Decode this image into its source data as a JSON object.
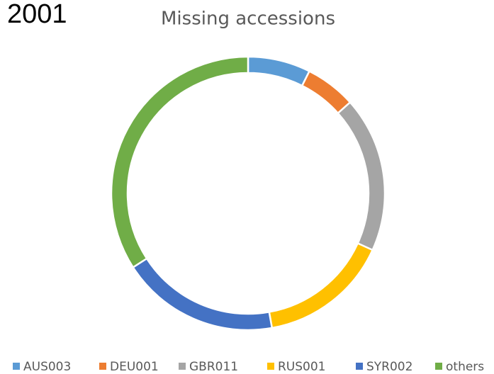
{
  "chart_data": {
    "type": "donut",
    "annotation": "2001",
    "title": "Missing accessions",
    "categories": [
      "AUS003",
      "DEU001",
      "GBR011",
      "RUS001",
      "SYR002",
      "others"
    ],
    "values": [
      7.4,
      6,
      18.4,
      15.4,
      18.7,
      34.1
    ],
    "colors": [
      "#5b9bd5",
      "#ed7d31",
      "#a5a5a5",
      "#ffc000",
      "#4472c4",
      "#70ad47"
    ],
    "legend": "bottom"
  }
}
